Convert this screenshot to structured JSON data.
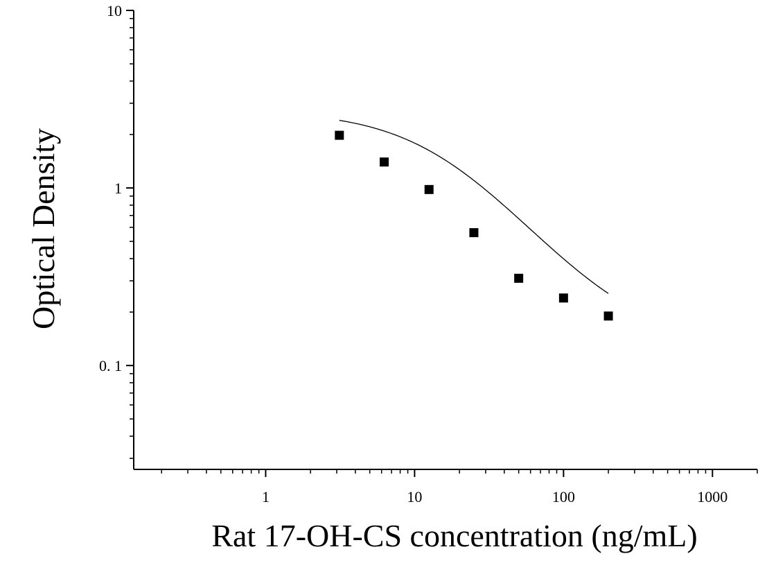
{
  "chart_data": {
    "type": "scatter",
    "title": "",
    "xlabel": "Rat 17-OH-CS concentration (ng/mL)",
    "ylabel": "Optical Density",
    "x_scale": "log",
    "y_scale": "log",
    "xlim": [
      0.13,
      2000
    ],
    "ylim": [
      0.026,
      10
    ],
    "x_ticks": [
      1,
      10,
      100,
      1000
    ],
    "x_tick_labels": [
      "1",
      "10",
      "100",
      "1000"
    ],
    "y_ticks": [
      0.1,
      1,
      10
    ],
    "y_tick_labels": [
      "0. 1",
      "1",
      "10"
    ],
    "grid": false,
    "legend": "none",
    "marker": "square",
    "series": [
      {
        "x": [
          3.125,
          6.25,
          12.5,
          25,
          50,
          100,
          200
        ],
        "y": [
          1.98,
          1.4,
          0.98,
          0.56,
          0.31,
          0.24,
          0.19
        ]
      }
    ],
    "fit_curve": {
      "model": "4PL",
      "x_range": [
        3.125,
        200
      ],
      "params": {
        "A": 2.73,
        "B": 1.18,
        "C": 16.2,
        "D": 0.127
      }
    },
    "colors": {
      "marker": "#000000",
      "curve": "#000000",
      "axis": "#000000"
    }
  }
}
